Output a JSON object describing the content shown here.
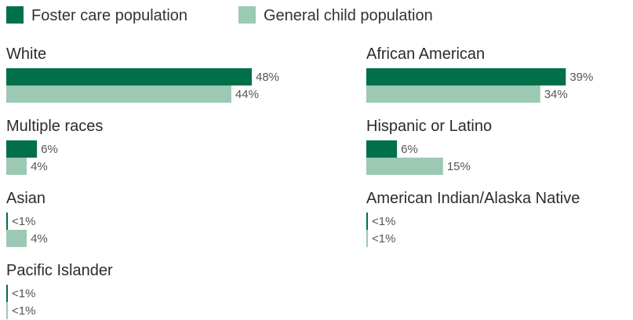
{
  "chart_data": {
    "type": "bar",
    "orientation": "horizontal",
    "legend_position": "top-left",
    "grid": false,
    "xlim": [
      0,
      48
    ],
    "colors": {
      "foster": "#00704a",
      "general": "#9cc9b4"
    },
    "series": [
      {
        "name": "Foster care population",
        "key": "foster"
      },
      {
        "name": "General child population",
        "key": "general"
      }
    ],
    "categories": [
      {
        "name": "White",
        "foster": 48,
        "general": 44,
        "foster_label": "48%",
        "general_label": "44%"
      },
      {
        "name": "African American",
        "foster": 39,
        "general": 34,
        "foster_label": "39%",
        "general_label": "34%"
      },
      {
        "name": "Multiple races",
        "foster": 6,
        "general": 4,
        "foster_label": "6%",
        "general_label": "4%"
      },
      {
        "name": "Hispanic or Latino",
        "foster": 6,
        "general": 15,
        "foster_label": "6%",
        "general_label": "15%"
      },
      {
        "name": "Asian",
        "foster": 0.3,
        "general": 4,
        "foster_label": "<1%",
        "general_label": "4%"
      },
      {
        "name": "American Indian/Alaska Native",
        "foster": 0.3,
        "general": 0.3,
        "foster_label": "<1%",
        "general_label": "<1%"
      },
      {
        "name": "Pacific Islander",
        "foster": 0.3,
        "general": 0.3,
        "foster_label": "<1%",
        "general_label": "<1%"
      }
    ]
  }
}
